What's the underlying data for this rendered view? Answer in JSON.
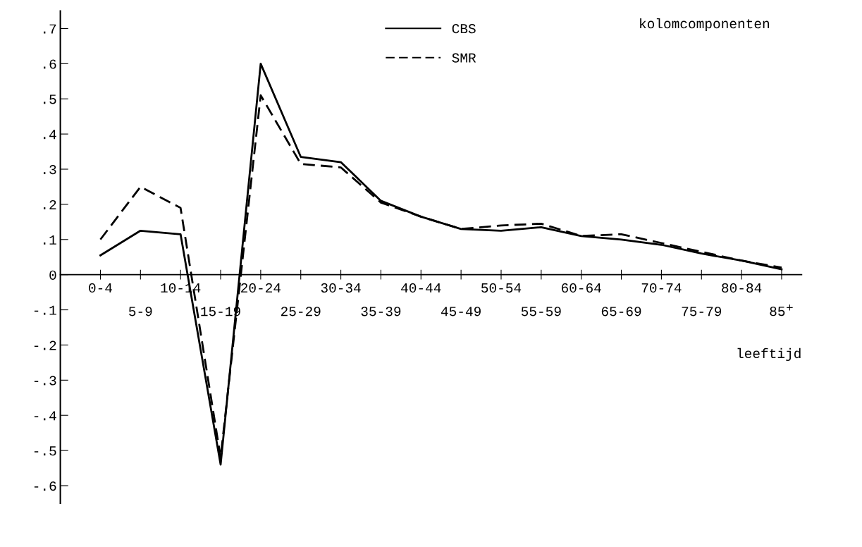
{
  "chart_data": {
    "type": "line",
    "title": "kolomcomponenten",
    "xlabel": "leeftijd",
    "categories": [
      "0-4",
      "5-9",
      "10-14",
      "15-19",
      "20-24",
      "25-29",
      "30-34",
      "35-39",
      "40-44",
      "45-49",
      "50-54",
      "55-59",
      "60-64",
      "65-69",
      "70-74",
      "75-79",
      "80-84",
      "85$^{+}$"
    ],
    "series": [
      {
        "name": "CBS",
        "color": "#000000",
        "line_style": "solid",
        "values": [
          0.055,
          0.125,
          0.115,
          -0.54,
          0.6,
          0.335,
          0.32,
          0.21,
          0.165,
          0.13,
          0.125,
          0.135,
          0.11,
          0.1,
          0.085,
          0.06,
          0.04,
          0.015
        ]
      },
      {
        "name": "SMR",
        "color": "#000000",
        "line_style": "dashed",
        "values": [
          0.1,
          0.25,
          0.19,
          -0.52,
          0.51,
          0.315,
          0.305,
          0.205,
          0.165,
          0.13,
          0.14,
          0.145,
          0.11,
          0.115,
          0.09,
          0.065,
          0.04,
          0.02
        ]
      }
    ],
    "ylim": [
      -0.65,
      0.75
    ],
    "yticks": [
      {
        "value": -0.6,
        "label": "-.6"
      },
      {
        "value": -0.5,
        "label": "-.5"
      },
      {
        "value": -0.4,
        "label": "-.4"
      },
      {
        "value": -0.3,
        "label": "-.3"
      },
      {
        "value": -0.2,
        "label": "-.2"
      },
      {
        "value": -0.1,
        "label": "-.1"
      },
      0,
      {
        "value": 0.1,
        "label": ".1"
      },
      {
        "value": 0.2,
        "label": ".2"
      },
      {
        "value": 0.3,
        "label": ".3"
      },
      {
        "value": 0.4,
        "label": ".4"
      },
      {
        "value": 0.5,
        "label": ".5"
      },
      {
        "value": 0.6,
        "label": ".6"
      },
      {
        "value": 0.7,
        "label": ".7"
      }
    ],
    "grid": false,
    "legend": "top",
    "marker": "none"
  }
}
